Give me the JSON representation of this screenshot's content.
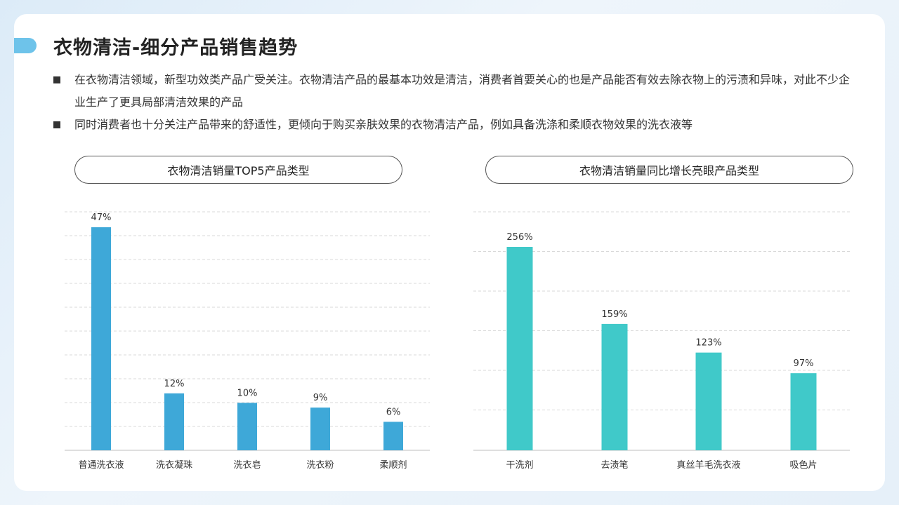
{
  "title": "衣物清洁-细分产品销售趋势",
  "bullets": [
    "在衣物清洁领域，新型功效类产品广受关注。衣物清洁产品的最基本功效是清洁，消费者首要关心的也是产品能否有效去除衣物上的污渍和异味，对此不少企业生产了更具局部清洁效果的产品",
    "同时消费者也十分关注产品带来的舒适性，更倾向于购买亲肤效果的衣物清洁产品，例如具备洗涤和柔顺衣物效果的洗衣液等"
  ],
  "chart_data": [
    {
      "type": "bar",
      "title": "衣物清洁销量TOP5产品类型",
      "categories": [
        "普通洗衣液",
        "洗衣凝珠",
        "洗衣皂",
        "洗衣粉",
        "柔顺剂"
      ],
      "values": [
        47,
        12,
        10,
        9,
        6
      ],
      "data_labels": [
        "47%",
        "12%",
        "10%",
        "9%",
        "6%"
      ],
      "unit": "%",
      "ylim": [
        0,
        50
      ],
      "grid": true,
      "color": "#3ea8d8"
    },
    {
      "type": "bar",
      "title": "衣物清洁销量同比增长亮眼产品类型",
      "categories": [
        "干洗剂",
        "去渍笔",
        "真丝羊毛洗衣液",
        "吸色片"
      ],
      "values": [
        256,
        159,
        123,
        97
      ],
      "data_labels": [
        "256%",
        "159%",
        "123%",
        "97%"
      ],
      "unit": "%",
      "ylim": [
        0,
        300
      ],
      "grid": true,
      "color": "#40c9c9"
    }
  ]
}
